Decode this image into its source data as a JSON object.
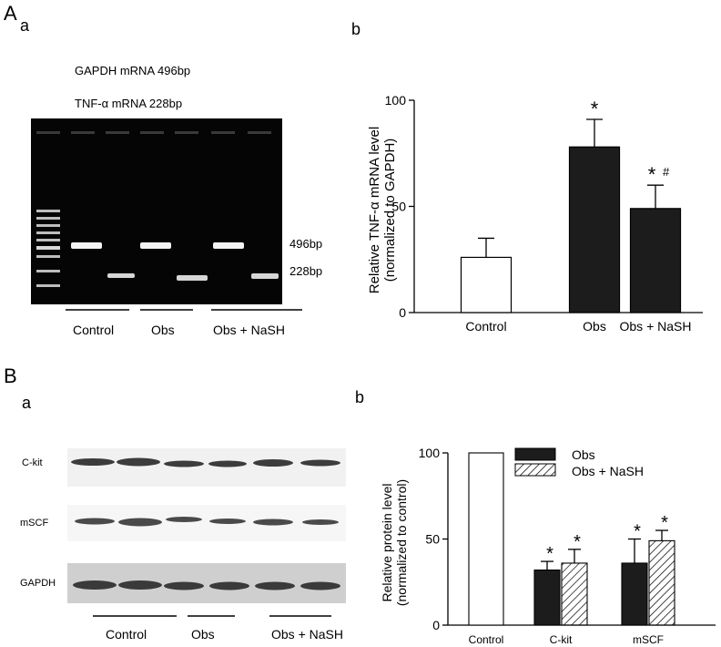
{
  "panel_A": {
    "letter": "A",
    "sub_a": "a",
    "sub_b": "b",
    "gel": {
      "legend_line1": "GAPDH mRNA  496bp",
      "legend_line2": "TNF-α  mRNA  228bp",
      "band_label_upper": "496bp",
      "band_label_lower": "228bp",
      "group_labels": [
        "Control",
        "Obs",
        "Obs + NaSH"
      ]
    }
  },
  "panel_B": {
    "letter": "B",
    "sub_a": "a",
    "sub_b": "b",
    "blot": {
      "row_labels": [
        "C-kit",
        "mSCF",
        "GAPDH"
      ],
      "group_labels": [
        "Control",
        "Obs",
        "Obs + NaSH"
      ]
    }
  },
  "chart_data": [
    {
      "type": "bar",
      "panel": "A b",
      "title": "",
      "xlabel": "",
      "ylabel": "Relative TNF-α mRNA level (normalized to GAPDH)",
      "categories": [
        "Control",
        "Obs",
        "Obs + NaSH"
      ],
      "values": [
        26,
        78,
        49
      ],
      "errors": [
        9,
        13,
        11
      ],
      "bar_fills": [
        "#ffffff",
        "#1c1c1c",
        "#1c1c1c"
      ],
      "annotations": [
        "",
        "*",
        "*#"
      ],
      "ylim": [
        0,
        100
      ],
      "yticks": [
        0,
        50,
        100
      ]
    },
    {
      "type": "bar",
      "panel": "B b",
      "title": "",
      "xlabel": "",
      "ylabel": "Relative protein level (normalized to control)",
      "categories": [
        "Control",
        "C-kit",
        "mSCF"
      ],
      "legend": [
        "Obs",
        "Obs + NaSH"
      ],
      "series": [
        {
          "name": "Control",
          "values": [
            100,
            null,
            null
          ],
          "errors": [
            null,
            null,
            null
          ],
          "fill": "#ffffff"
        },
        {
          "name": "Obs",
          "values": [
            null,
            32,
            36
          ],
          "errors": [
            null,
            5,
            14
          ],
          "fill": "#1c1c1c",
          "annotations": [
            "",
            "*",
            "*"
          ]
        },
        {
          "name": "Obs + NaSH",
          "values": [
            null,
            36,
            49
          ],
          "errors": [
            null,
            8,
            6
          ],
          "fill": "hatched",
          "annotations": [
            "",
            "*",
            "*"
          ]
        }
      ],
      "ylim": [
        0,
        100
      ],
      "yticks": [
        0,
        50,
        100
      ]
    }
  ]
}
